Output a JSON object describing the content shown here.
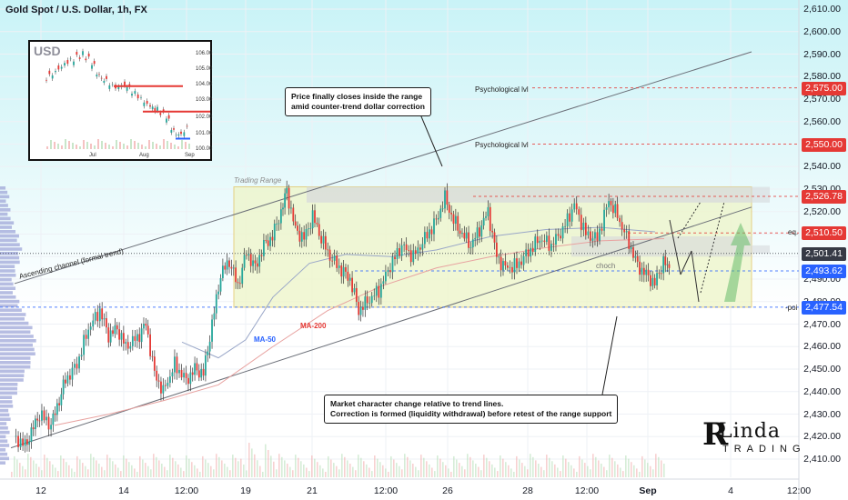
{
  "title": "Gold Spot / U.S. Dollar, 1h, FX",
  "chart_data": {
    "type": "candlestick",
    "symbol": "Gold Spot / U.S. Dollar",
    "timeframe": "1h",
    "ylim": [
      2405,
      2615
    ],
    "y_ticks": [
      2410,
      2420,
      2430,
      2440,
      2450,
      2460,
      2470,
      2480,
      2490,
      2500,
      2510,
      2520,
      2530,
      2540,
      2550,
      2560,
      2570,
      2580,
      2590,
      2600,
      2610
    ],
    "y_tick_labels": [
      "2,410.00",
      "2,420.00",
      "2,430.00",
      "2,440.00",
      "2,450.00",
      "2,460.00",
      "2,470.00",
      "2,480.00",
      "2,490.00",
      "2,500.00",
      "2,510.00",
      "2,520.00",
      "2,530.00",
      "2,540.00",
      "2,550.00",
      "2,560.00",
      "2,570.00",
      "2,580.00",
      "2,590.00",
      "2,600.00",
      "2,610.00"
    ],
    "x_ticks": [
      "12",
      "14",
      "12:00",
      "19",
      "21",
      "12:00",
      "26",
      "28",
      "12:00",
      "Sep",
      "4",
      "12:00"
    ],
    "close_path": [
      [
        0,
        2420
      ],
      [
        8,
        2416
      ],
      [
        18,
        2430
      ],
      [
        26,
        2425
      ],
      [
        36,
        2445
      ],
      [
        44,
        2452
      ],
      [
        52,
        2468
      ],
      [
        60,
        2476
      ],
      [
        66,
        2465
      ],
      [
        72,
        2468
      ],
      [
        78,
        2460
      ],
      [
        86,
        2464
      ],
      [
        92,
        2470
      ],
      [
        98,
        2448
      ],
      [
        104,
        2440
      ],
      [
        112,
        2452
      ],
      [
        120,
        2445
      ],
      [
        126,
        2450
      ],
      [
        132,
        2448
      ],
      [
        138,
        2470
      ],
      [
        144,
        2492
      ],
      [
        150,
        2498
      ],
      [
        156,
        2487
      ],
      [
        162,
        2502
      ],
      [
        168,
        2495
      ],
      [
        174,
        2505
      ],
      [
        180,
        2509
      ],
      [
        186,
        2520
      ],
      [
        190,
        2529
      ],
      [
        196,
        2512
      ],
      [
        202,
        2508
      ],
      [
        208,
        2518
      ],
      [
        214,
        2508
      ],
      [
        220,
        2500
      ],
      [
        228,
        2494
      ],
      [
        234,
        2490
      ],
      [
        240,
        2476
      ],
      [
        246,
        2480
      ],
      [
        254,
        2485
      ],
      [
        262,
        2496
      ],
      [
        270,
        2505
      ],
      [
        278,
        2500
      ],
      [
        286,
        2508
      ],
      [
        294,
        2516
      ],
      [
        300,
        2526
      ],
      [
        306,
        2516
      ],
      [
        312,
        2510
      ],
      [
        318,
        2505
      ],
      [
        324,
        2512
      ],
      [
        330,
        2520
      ],
      [
        336,
        2500
      ],
      [
        342,
        2495
      ],
      [
        350,
        2496
      ],
      [
        358,
        2502
      ],
      [
        366,
        2508
      ],
      [
        374,
        2505
      ],
      [
        382,
        2512
      ],
      [
        390,
        2523
      ],
      [
        398,
        2510
      ],
      [
        406,
        2508
      ],
      [
        414,
        2525
      ],
      [
        420,
        2518
      ],
      [
        428,
        2506
      ],
      [
        434,
        2496
      ],
      [
        440,
        2492
      ],
      [
        446,
        2488
      ],
      [
        452,
        2498
      ],
      [
        456,
        2494
      ]
    ],
    "volume_profile_color": "#9fa7d8",
    "series": [
      {
        "name": "MA-50",
        "color": "#2962ff"
      },
      {
        "name": "MA-200",
        "color": "#e53935"
      }
    ],
    "levels": [
      {
        "label": "Psychological lvl",
        "value": 2575.0,
        "tag": "2,575.00",
        "color": "#e53935"
      },
      {
        "label": "Psychological lvl",
        "value": 2550.0,
        "tag": "2,550.00",
        "color": "#e53935"
      },
      {
        "label": "",
        "value": 2526.78,
        "tag": "2,526.78",
        "color": "#e53935"
      },
      {
        "label": "eq.",
        "value": 2510.5,
        "tag": "2,510.50",
        "color": "#e53935"
      },
      {
        "label": "",
        "value": 2501.41,
        "tag": "2,501.41",
        "color": "#363a45"
      },
      {
        "label": "choch",
        "value": 2493.62,
        "tag": "2,493.62",
        "color": "#2962ff"
      },
      {
        "label": "-poi",
        "value": 2477.54,
        "tag": "2,477.54",
        "color": "#2962ff"
      }
    ],
    "annotations": [
      "Price finally closes inside the range amid counter-trend dollar correction",
      "Market character change relative to trend lines. Correction is formed (liquidity withdrawal) before retest of the range support"
    ]
  },
  "labels": {
    "trading_range": "Trading Range",
    "ascending_channel": "Ascending channel (formal trend)",
    "ma50": "MA-50",
    "ma200": "MA-200",
    "psych1": "Psychological lvl",
    "psych2": "Psychological lvl",
    "eq": "eq.",
    "choch": "choch",
    "poi": "-poi",
    "callout_top_line1": "Price finally closes inside the range",
    "callout_top_line2": "amid counter-trend dollar correction",
    "callout_bottom_line1": "Market character change relative to trend lines.",
    "callout_bottom_line2": "Correction is formed (liquidity withdrawal) before retest of the range support"
  },
  "inset": {
    "title": "USD",
    "x_labels": [
      "Jul",
      "Aug",
      "Sep"
    ],
    "y_labels": [
      "106.00",
      "105.00",
      "104.00",
      "103.00",
      "102.00",
      "101.00",
      "100.00"
    ]
  },
  "logo": {
    "main": "Linda",
    "sub": "TRADING"
  },
  "colors": {
    "up": "#26a69a",
    "down": "#e53935",
    "range_fill": "#eef5c8",
    "range_border": "#e2c25a"
  }
}
